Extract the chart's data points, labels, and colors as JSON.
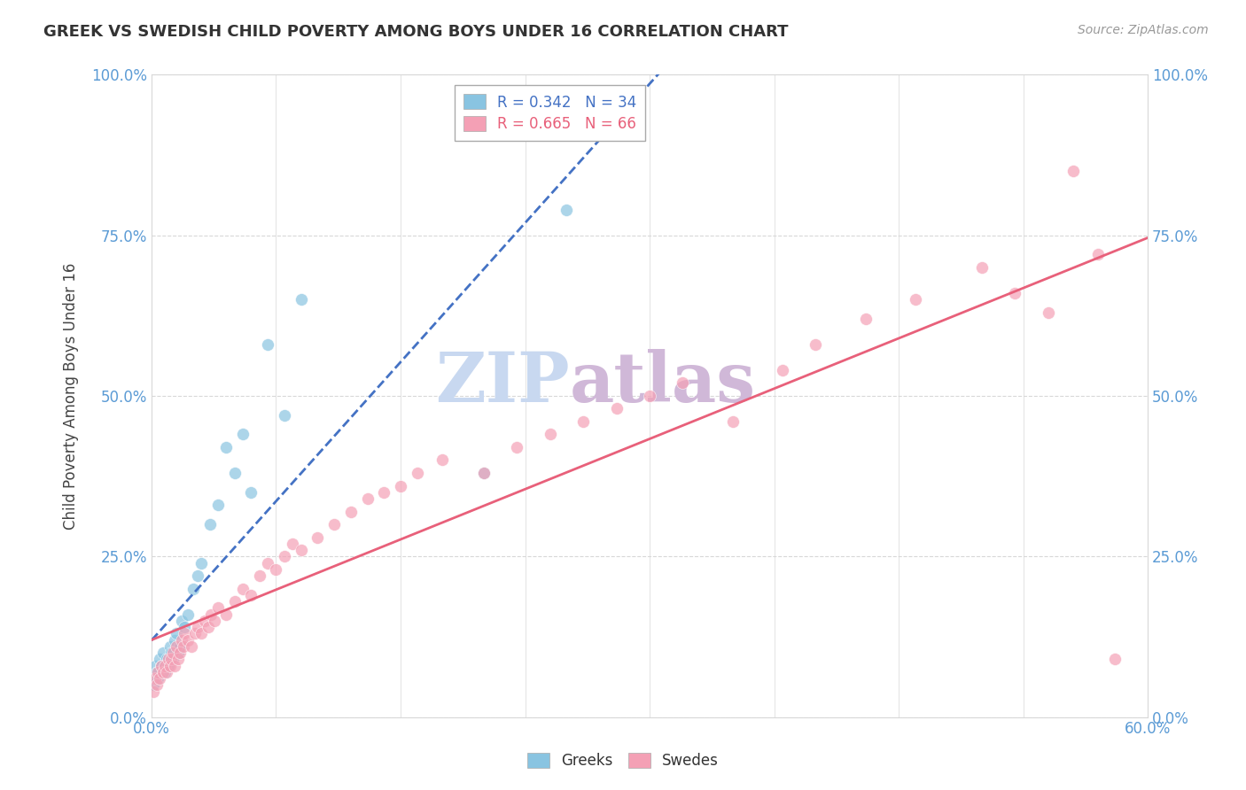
{
  "title": "GREEK VS SWEDISH CHILD POVERTY AMONG BOYS UNDER 16 CORRELATION CHART",
  "source": "Source: ZipAtlas.com",
  "ylabel_label": "Child Poverty Among Boys Under 16",
  "xlim": [
    0.0,
    0.6
  ],
  "ylim": [
    0.0,
    1.0
  ],
  "xticks": [
    0.0,
    0.075,
    0.15,
    0.225,
    0.3,
    0.375,
    0.45,
    0.525,
    0.6
  ],
  "yticks": [
    0.0,
    0.25,
    0.5,
    0.75,
    1.0
  ],
  "xticklabels_show": [
    "0.0%",
    "",
    "",
    "",
    "",
    "",
    "",
    "",
    "60.0%"
  ],
  "yticklabels": [
    "0.0%",
    "25.0%",
    "50.0%",
    "75.0%",
    "100.0%"
  ],
  "greek_R": 0.342,
  "greek_N": 34,
  "swedish_R": 0.665,
  "swedish_N": 66,
  "greek_color": "#89c4e1",
  "swedish_color": "#f4a0b5",
  "greek_line_color": "#4472c4",
  "swedish_line_color": "#e8607a",
  "watermark": "ZIPatlas",
  "watermark_color_zip": "#c8d8f0",
  "watermark_color_atlas": "#d0b8d8",
  "background_color": "#ffffff",
  "tick_color": "#5b9bd5",
  "grid_color": "#d8d8d8",
  "greek_scatter_x": [
    0.001,
    0.002,
    0.003,
    0.004,
    0.005,
    0.006,
    0.007,
    0.008,
    0.009,
    0.01,
    0.011,
    0.012,
    0.013,
    0.014,
    0.015,
    0.016,
    0.017,
    0.018,
    0.02,
    0.022,
    0.025,
    0.028,
    0.03,
    0.035,
    0.04,
    0.045,
    0.05,
    0.055,
    0.06,
    0.07,
    0.08,
    0.09,
    0.2,
    0.25
  ],
  "greek_scatter_y": [
    0.05,
    0.08,
    0.07,
    0.06,
    0.09,
    0.08,
    0.1,
    0.07,
    0.09,
    0.08,
    0.11,
    0.1,
    0.09,
    0.12,
    0.13,
    0.1,
    0.11,
    0.15,
    0.14,
    0.16,
    0.2,
    0.22,
    0.24,
    0.3,
    0.33,
    0.42,
    0.38,
    0.44,
    0.35,
    0.58,
    0.47,
    0.65,
    0.38,
    0.79
  ],
  "swedish_scatter_x": [
    0.001,
    0.002,
    0.003,
    0.004,
    0.005,
    0.006,
    0.007,
    0.008,
    0.009,
    0.01,
    0.011,
    0.012,
    0.013,
    0.014,
    0.015,
    0.016,
    0.017,
    0.018,
    0.019,
    0.02,
    0.022,
    0.024,
    0.026,
    0.028,
    0.03,
    0.032,
    0.034,
    0.036,
    0.038,
    0.04,
    0.045,
    0.05,
    0.055,
    0.06,
    0.065,
    0.07,
    0.075,
    0.08,
    0.085,
    0.09,
    0.1,
    0.11,
    0.12,
    0.13,
    0.14,
    0.15,
    0.16,
    0.175,
    0.2,
    0.22,
    0.24,
    0.26,
    0.28,
    0.3,
    0.32,
    0.35,
    0.38,
    0.4,
    0.43,
    0.46,
    0.5,
    0.52,
    0.54,
    0.555,
    0.57,
    0.58
  ],
  "swedish_scatter_y": [
    0.04,
    0.06,
    0.05,
    0.07,
    0.06,
    0.08,
    0.07,
    0.08,
    0.07,
    0.09,
    0.08,
    0.09,
    0.1,
    0.08,
    0.11,
    0.09,
    0.1,
    0.12,
    0.11,
    0.13,
    0.12,
    0.11,
    0.13,
    0.14,
    0.13,
    0.15,
    0.14,
    0.16,
    0.15,
    0.17,
    0.16,
    0.18,
    0.2,
    0.19,
    0.22,
    0.24,
    0.23,
    0.25,
    0.27,
    0.26,
    0.28,
    0.3,
    0.32,
    0.34,
    0.35,
    0.36,
    0.38,
    0.4,
    0.38,
    0.42,
    0.44,
    0.46,
    0.48,
    0.5,
    0.52,
    0.46,
    0.54,
    0.58,
    0.62,
    0.65,
    0.7,
    0.66,
    0.63,
    0.85,
    0.72,
    0.09
  ]
}
